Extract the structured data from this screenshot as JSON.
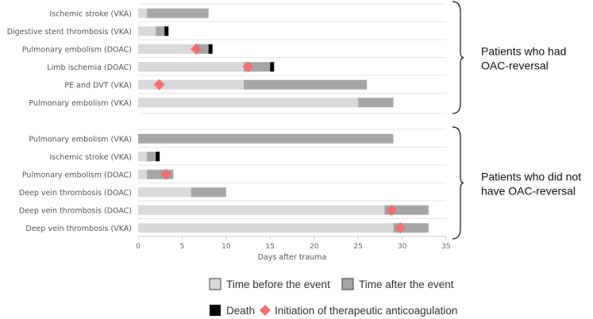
{
  "chart_data": {
    "type": "bar",
    "orientation": "horizontal-stacked",
    "xlabel": "Days after trauma",
    "xlim": [
      0,
      35
    ],
    "xticks": [
      0,
      5,
      10,
      15,
      20,
      25,
      30,
      35
    ],
    "groups": [
      {
        "label": "Patients who had OAC-reversal",
        "rows": [
          {
            "label": "Ischemic stroke (VKA)",
            "before": 1,
            "after": 7,
            "death": false,
            "anticoagulation": null
          },
          {
            "label": "Digestive stent thrombosis (VKA)",
            "before": 2,
            "after": 1,
            "death": true,
            "anticoagulation": null
          },
          {
            "label": "Pulmonary embolism (DOAC)",
            "before": 6.5,
            "after": 1.5,
            "death": true,
            "anticoagulation": 6.6
          },
          {
            "label": "Limb ischemia (DOAC)",
            "before": 12,
            "after": 3,
            "death": true,
            "anticoagulation": 12.5
          },
          {
            "label": "PE and DVT (VKA)",
            "before": 12,
            "after": 14,
            "death": false,
            "anticoagulation": 2.4
          },
          {
            "label": "Pulmonary embolism (VKA)",
            "before": 25,
            "after": 4,
            "death": false,
            "anticoagulation": null
          }
        ]
      },
      {
        "label": "Patients who did not have OAC-reversal",
        "rows": [
          {
            "label": "Pulmonary embolism (VKA)",
            "before": 0,
            "after": 29,
            "death": false,
            "anticoagulation": null
          },
          {
            "label": "Ischemic stroke (VKA)",
            "before": 1,
            "after": 1,
            "death": true,
            "anticoagulation": null
          },
          {
            "label": "Pulmonary embolism (DOAC)",
            "before": 1,
            "after": 3,
            "death": false,
            "anticoagulation": 3.2
          },
          {
            "label": "Deep vein thrombosis (DOAC)",
            "before": 6,
            "after": 4,
            "death": false,
            "anticoagulation": null
          },
          {
            "label": "Deep vein thrombosis (DOAC)",
            "before": 28,
            "after": 5,
            "death": false,
            "anticoagulation": 28.8
          },
          {
            "label": "Deep vein thrombosis (VKA)",
            "before": 29,
            "after": 4,
            "death": false,
            "anticoagulation": 29.8
          }
        ]
      }
    ],
    "legend": {
      "before": "Time before the event",
      "after": "Time after the event",
      "death": "Death",
      "anticoagulation": "Initiation of therapeutic anticoagulation"
    },
    "colors": {
      "before": "#d9d9d9",
      "after": "#a6a6a6",
      "death": "#000000",
      "anticoagulation": "#f07070",
      "gridline": "#e6e6e6"
    }
  }
}
